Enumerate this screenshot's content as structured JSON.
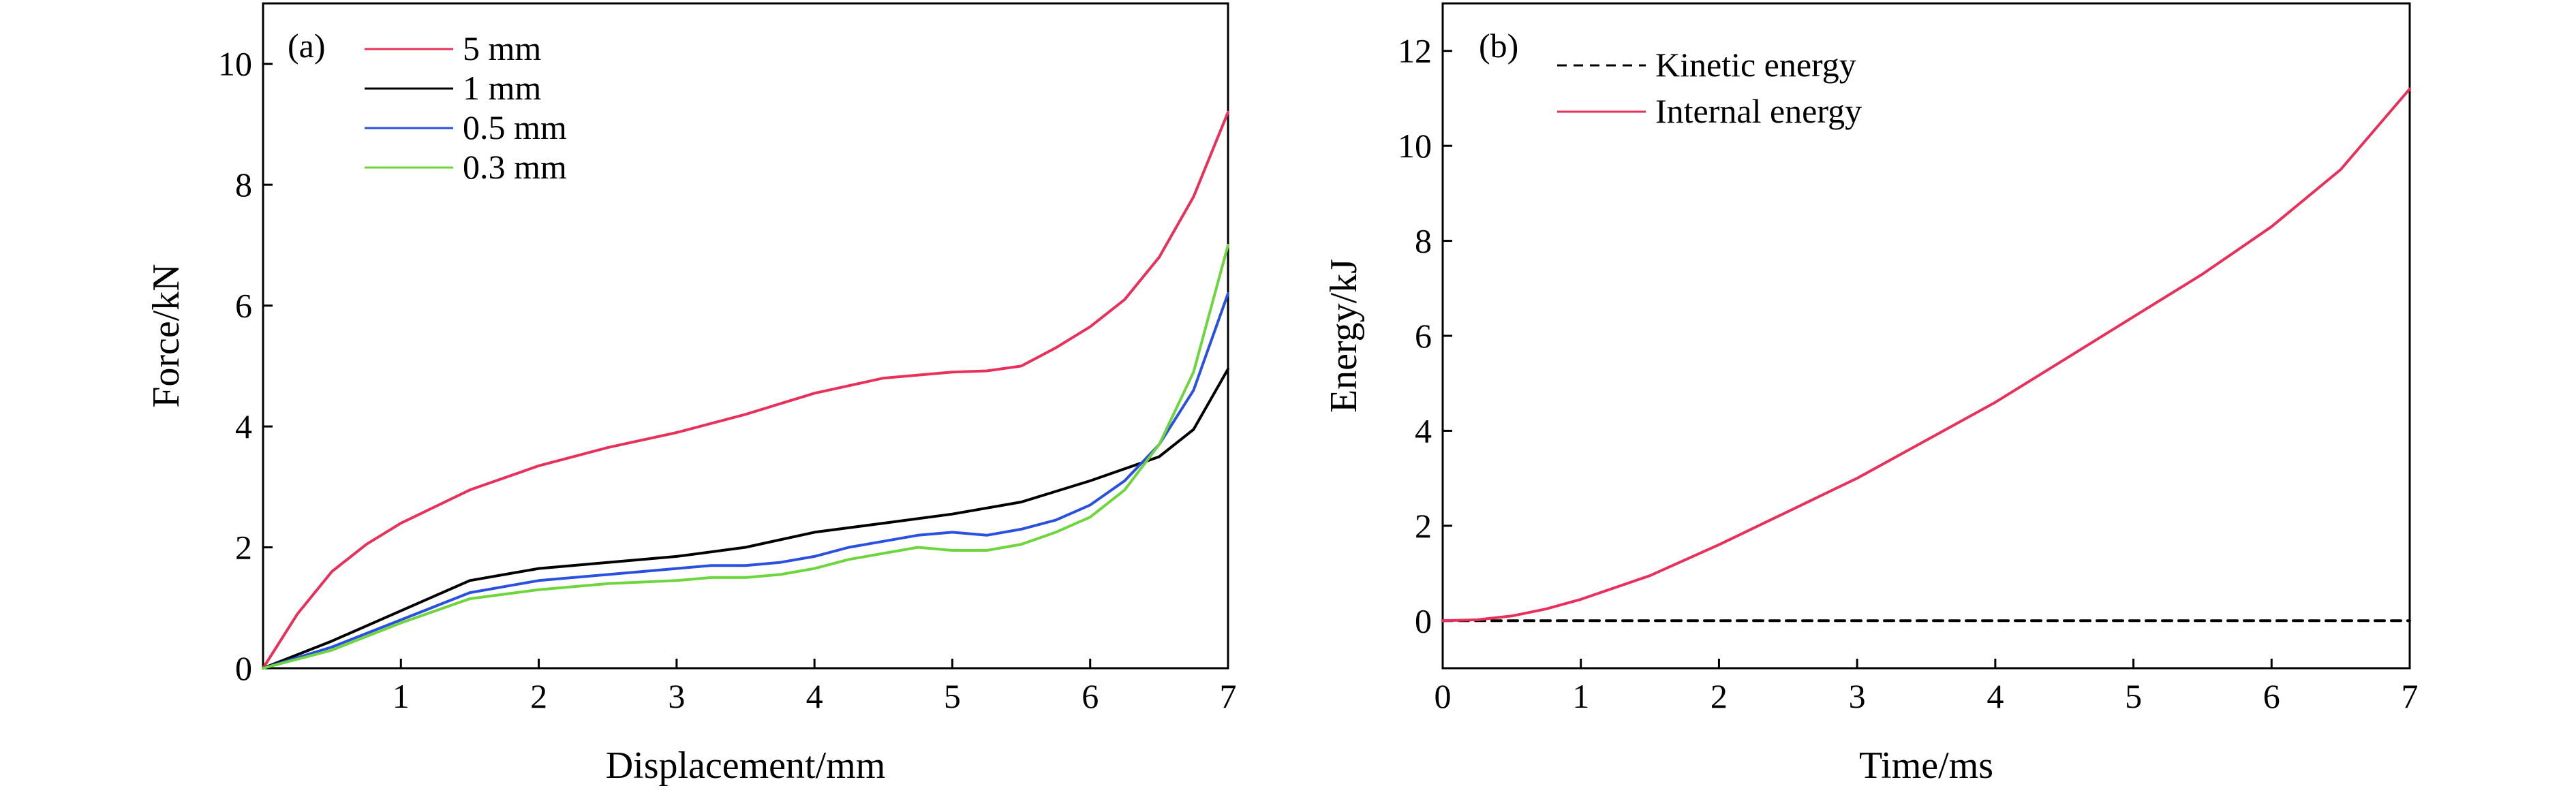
{
  "chart_data": [
    {
      "type": "line",
      "panel_label": "(a)",
      "xlabel": "Displacement/mm",
      "ylabel": "Force/kN",
      "xlim": [
        0,
        7
      ],
      "ylim": [
        0,
        11
      ],
      "xticks": [
        1,
        2,
        3,
        4,
        5,
        6,
        7
      ],
      "yticks": [
        0,
        2,
        4,
        6,
        8,
        10
      ],
      "legend_position": "top-left",
      "series": [
        {
          "name": "5 mm",
          "color": "#e8305a",
          "dash": "",
          "x": [
            0,
            0.25,
            0.5,
            0.75,
            1,
            1.5,
            2,
            2.5,
            3,
            3.5,
            4,
            4.5,
            5,
            5.25,
            5.5,
            5.75,
            6,
            6.25,
            6.5,
            6.75,
            7
          ],
          "y": [
            0,
            0.9,
            1.6,
            2.05,
            2.4,
            2.95,
            3.35,
            3.65,
            3.9,
            4.2,
            4.55,
            4.8,
            4.9,
            4.92,
            5.0,
            5.3,
            5.65,
            6.1,
            6.8,
            7.8,
            9.2
          ]
        },
        {
          "name": "1 mm",
          "color": "#000000",
          "dash": "",
          "x": [
            0,
            0.5,
            1,
            1.5,
            2,
            2.5,
            3,
            3.5,
            4,
            4.5,
            5,
            5.5,
            6,
            6.5,
            6.75,
            7
          ],
          "y": [
            0,
            0.45,
            0.95,
            1.45,
            1.65,
            1.75,
            1.85,
            2.0,
            2.25,
            2.4,
            2.55,
            2.75,
            3.1,
            3.5,
            3.95,
            4.95
          ]
        },
        {
          "name": "0.5 mm",
          "color": "#2a50e0",
          "dash": "",
          "x": [
            0,
            0.5,
            1,
            1.5,
            2,
            2.5,
            3,
            3.25,
            3.5,
            3.75,
            4,
            4.25,
            4.5,
            4.75,
            5,
            5.25,
            5.5,
            5.75,
            6,
            6.25,
            6.5,
            6.75,
            7
          ],
          "y": [
            0,
            0.35,
            0.8,
            1.25,
            1.45,
            1.55,
            1.65,
            1.7,
            1.7,
            1.75,
            1.85,
            2.0,
            2.1,
            2.2,
            2.25,
            2.2,
            2.3,
            2.45,
            2.7,
            3.1,
            3.7,
            4.6,
            6.2
          ]
        },
        {
          "name": "0.3 mm",
          "color": "#6ed63c",
          "dash": "",
          "x": [
            0,
            0.5,
            1,
            1.5,
            2,
            2.5,
            3,
            3.25,
            3.5,
            3.75,
            4,
            4.25,
            4.5,
            4.75,
            5,
            5.25,
            5.5,
            5.75,
            6,
            6.25,
            6.5,
            6.75,
            7
          ],
          "y": [
            0,
            0.3,
            0.75,
            1.15,
            1.3,
            1.4,
            1.45,
            1.5,
            1.5,
            1.55,
            1.65,
            1.8,
            1.9,
            2.0,
            1.95,
            1.95,
            2.05,
            2.25,
            2.5,
            2.95,
            3.7,
            4.9,
            7.0
          ]
        }
      ]
    },
    {
      "type": "line",
      "panel_label": "(b)",
      "xlabel": "Time/ms",
      "ylabel": "Energy/kJ",
      "xlim": [
        0,
        7
      ],
      "ylim": [
        -1,
        13
      ],
      "xticks": [
        0,
        1,
        2,
        3,
        4,
        5,
        6,
        7
      ],
      "yticks": [
        0,
        2,
        4,
        6,
        8,
        10,
        12
      ],
      "legend_position": "top-left",
      "series": [
        {
          "name": "Kinetic energy",
          "color": "#000000",
          "dash": "14,10",
          "x": [
            0,
            7
          ],
          "y": [
            0,
            0
          ]
        },
        {
          "name": "Internal energy",
          "color": "#e8305a",
          "dash": "",
          "x": [
            0,
            0.25,
            0.5,
            0.75,
            1,
            1.5,
            2,
            2.5,
            3,
            3.5,
            4,
            4.5,
            5,
            5.5,
            6,
            6.5,
            7
          ],
          "y": [
            0,
            0.02,
            0.1,
            0.25,
            0.45,
            0.95,
            1.6,
            2.3,
            3.0,
            3.8,
            4.6,
            5.5,
            6.4,
            7.3,
            8.3,
            9.5,
            11.2
          ]
        }
      ]
    }
  ]
}
